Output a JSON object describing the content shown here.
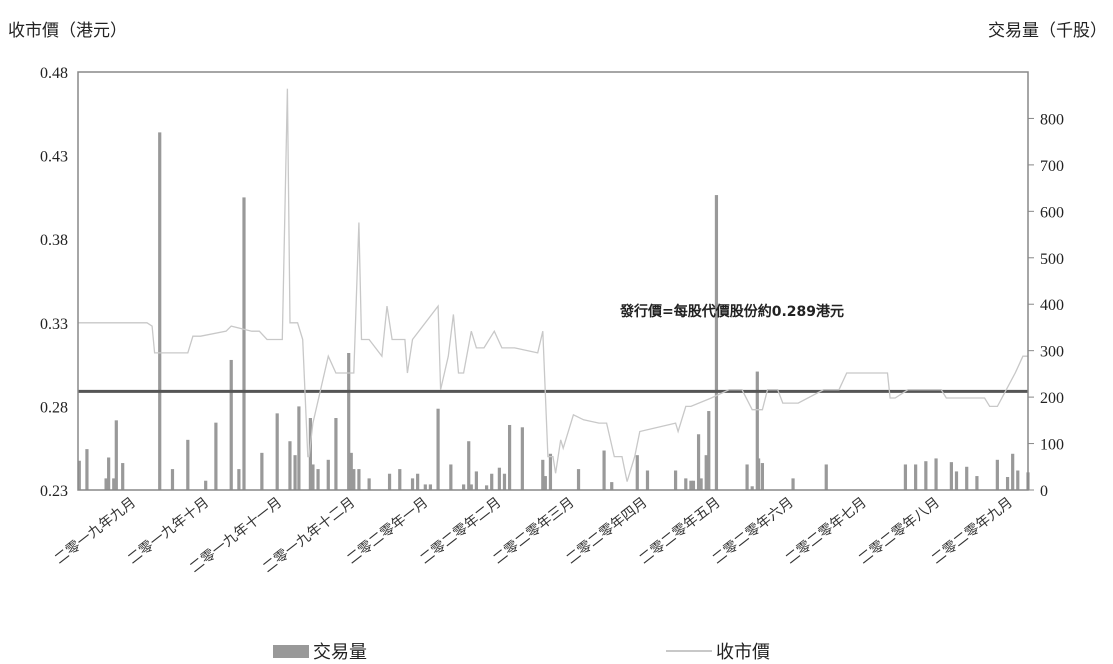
{
  "chart_data": {
    "type": "bar+line",
    "y_left_label": "收市價（港元）",
    "y_right_label": "交易量（千股）",
    "y_left_ticks": [
      "0.48",
      "0.43",
      "0.38",
      "0.33",
      "0.28",
      "0.23"
    ],
    "y_left_range": [
      0.23,
      0.48
    ],
    "y_right_ticks": [
      "800",
      "700",
      "600",
      "500",
      "400",
      "300",
      "200",
      "100",
      "0"
    ],
    "y_right_range": [
      0,
      900
    ],
    "x_categories": [
      "二零一九年九月",
      "二零一九年十月",
      "二零一九年十一月",
      "二零一九年十二月",
      "二零二零年一月",
      "二零二零年二月",
      "二零二零年三月",
      "二零二零年四月",
      "二零二零年五月",
      "二零二零年六月",
      "二零二零年七月",
      "二零二零年八月",
      "二零二零年九月"
    ],
    "offer_price": 0.289,
    "annotation": "發行價=每股代價股份約0.289港元",
    "colors": {
      "volume": "#999999",
      "price": "#c8c8c8",
      "offer": "#555555"
    },
    "series": [
      {
        "name": "交易量",
        "type": "bar",
        "x": [
          0.5,
          3.5,
          11,
          12,
          14,
          15,
          17.5,
          32,
          37,
          43,
          50,
          54,
          60,
          63,
          65,
          72,
          78,
          83,
          85,
          86.5,
          91,
          92,
          94,
          98,
          101,
          106,
          107,
          108,
          110,
          114,
          122,
          126,
          131,
          133,
          136,
          138,
          141,
          146,
          151,
          153,
          154,
          156,
          160,
          162,
          165,
          167,
          169,
          174,
          182,
          183,
          185,
          196,
          206,
          209,
          219,
          223,
          234,
          238,
          240,
          241,
          243,
          244,
          246,
          247,
          250,
          262,
          264,
          266,
          266.5,
          268,
          280,
          293,
          324,
          328,
          332,
          336,
          342,
          344,
          348,
          352,
          360,
          364,
          366,
          368,
          372
        ],
        "values": [
          63,
          88,
          25,
          70,
          25,
          150,
          58,
          770,
          45,
          108,
          20,
          145,
          280,
          45,
          630,
          80,
          165,
          105,
          75,
          180,
          155,
          55,
          45,
          65,
          155,
          295,
          80,
          45,
          45,
          25,
          35,
          45,
          25,
          35,
          12,
          12,
          175,
          55,
          12,
          105,
          12,
          40,
          10,
          35,
          48,
          35,
          140,
          135,
          65,
          30,
          78,
          45,
          85,
          17,
          75,
          42,
          42,
          25,
          20,
          20,
          120,
          25,
          75,
          170,
          635,
          55,
          8,
          255,
          68,
          58,
          25,
          55,
          55,
          55,
          62,
          68,
          60,
          40,
          50,
          30,
          65,
          28,
          78,
          42,
          38
        ]
      },
      {
        "name": "收市價",
        "type": "line",
        "x": [
          0,
          27,
          29,
          30,
          43,
          45,
          48,
          58,
          60,
          68,
          71,
          74,
          80,
          82,
          83,
          86,
          88,
          90,
          90.5,
          92,
          95,
          98,
          101,
          106,
          108,
          110,
          111,
          112,
          113,
          114,
          119,
          121,
          123,
          126,
          128,
          129,
          131,
          141,
          142,
          145,
          147,
          149,
          151,
          154,
          156,
          159,
          163,
          166,
          170,
          171,
          180,
          182,
          184,
          186,
          187,
          189,
          190,
          194,
          198,
          204,
          207,
          210,
          212,
          213,
          215,
          218,
          220,
          234,
          235,
          238,
          240,
          248,
          255,
          258,
          260,
          264,
          268,
          270,
          274,
          276,
          282,
          292,
          298,
          301,
          304,
          317,
          318,
          320,
          325,
          330,
          335,
          338,
          340,
          355,
          357,
          360,
          367,
          370,
          372
        ],
        "values": [
          0.33,
          0.33,
          0.328,
          0.312,
          0.312,
          0.322,
          0.322,
          0.325,
          0.328,
          0.325,
          0.325,
          0.32,
          0.32,
          0.47,
          0.33,
          0.33,
          0.32,
          0.25,
          0.25,
          0.27,
          0.29,
          0.31,
          0.3,
          0.3,
          0.3,
          0.39,
          0.32,
          0.32,
          0.32,
          0.32,
          0.31,
          0.34,
          0.32,
          0.32,
          0.32,
          0.3,
          0.32,
          0.34,
          0.29,
          0.31,
          0.335,
          0.3,
          0.3,
          0.325,
          0.315,
          0.315,
          0.325,
          0.315,
          0.315,
          0.315,
          0.312,
          0.325,
          0.25,
          0.25,
          0.24,
          0.26,
          0.255,
          0.275,
          0.272,
          0.27,
          0.27,
          0.25,
          0.25,
          0.25,
          0.235,
          0.25,
          0.265,
          0.27,
          0.265,
          0.28,
          0.28,
          0.285,
          0.29,
          0.29,
          0.29,
          0.278,
          0.278,
          0.29,
          0.29,
          0.282,
          0.282,
          0.29,
          0.29,
          0.3,
          0.3,
          0.3,
          0.285,
          0.285,
          0.29,
          0.29,
          0.29,
          0.29,
          0.285,
          0.285,
          0.28,
          0.28,
          0.3,
          0.31,
          0.31
        ]
      }
    ]
  },
  "legend": {
    "volume_label": "交易量",
    "price_label": "收市價"
  }
}
